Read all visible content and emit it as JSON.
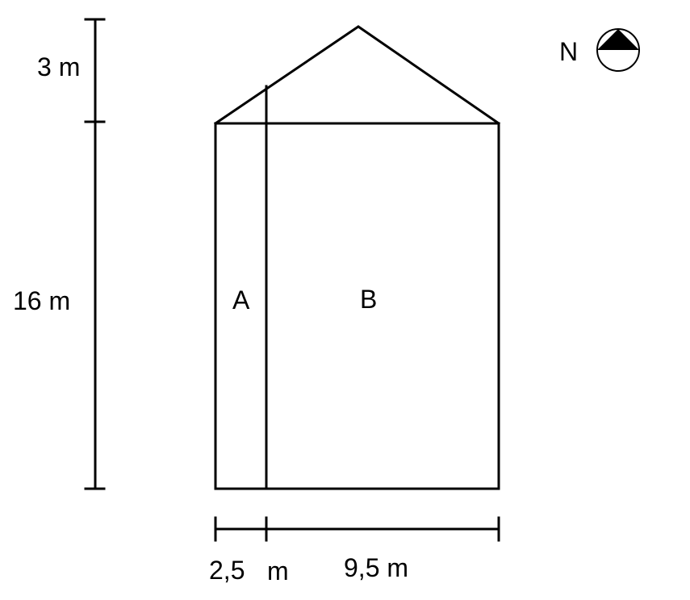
{
  "dimensions": {
    "roof_height": "3 m",
    "wall_height": "16 m",
    "width_a": "2,5",
    "width_a_unit": "m",
    "width_b": "9,5 m"
  },
  "regions": {
    "a": "A",
    "b": "B"
  },
  "compass": {
    "label": "N",
    "icon": "north-arrow-icon"
  },
  "colors": {
    "line": "#000000",
    "background": "#ffffff"
  }
}
